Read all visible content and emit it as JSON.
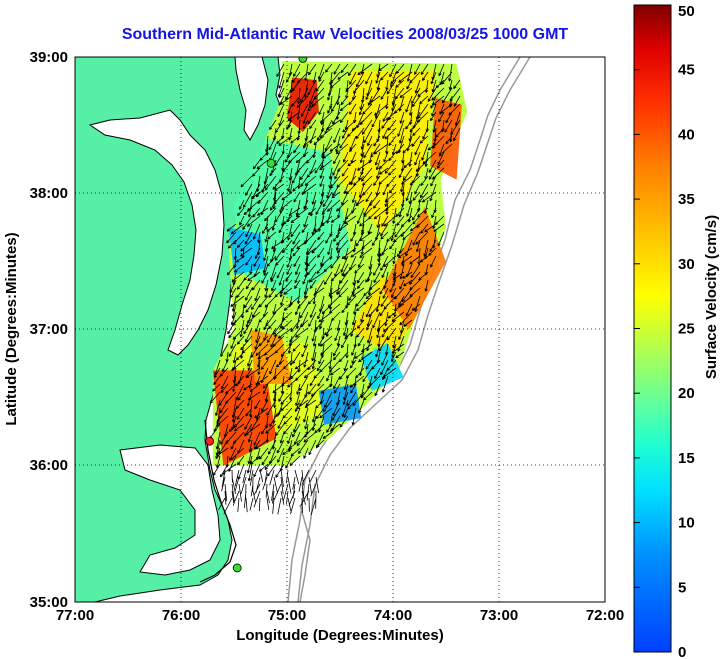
{
  "title": "Southern Mid-Atlantic Raw Velocities 2008/03/25 1000 GMT",
  "axes": {
    "xlabel": "Longitude (Degrees:Minutes)",
    "ylabel": "Latitude (Degrees:Minutes)",
    "xticks": [
      "77:00",
      "76:00",
      "75:00",
      "74:00",
      "73:00",
      "72:00"
    ],
    "yticks": [
      "39:00",
      "38:00",
      "37:00",
      "36:00",
      "35:00"
    ],
    "xlim": [
      -77,
      -72
    ],
    "ylim": [
      35,
      39
    ],
    "grid": "dotted"
  },
  "colorbar": {
    "label": "Surface Velocity (cm/s)",
    "ticks": [
      "50",
      "45",
      "40",
      "35",
      "30",
      "25",
      "20",
      "15",
      "10",
      "5",
      "0"
    ],
    "range": [
      0,
      50
    ],
    "colormap": "jet"
  },
  "colors": {
    "title": "#1414e6",
    "land": "#55f0a5",
    "ocean": "#ffffff",
    "coastline": "#000000",
    "bathymetry": "#999999",
    "station_red": "#ff2020",
    "station_green": "#33dd33"
  },
  "stations": [
    {
      "color": "green",
      "lon": -74.85,
      "lat": 38.99
    },
    {
      "color": "green",
      "lon": -75.15,
      "lat": 38.22
    },
    {
      "color": "red",
      "lon": -75.73,
      "lat": 36.18
    },
    {
      "color": "green",
      "lon": -75.47,
      "lat": 35.25
    }
  ],
  "velocity_regions": [
    {
      "level": 45,
      "polygon": [
        [
          -74.95,
          38.85
        ],
        [
          -74.72,
          38.83
        ],
        [
          -74.7,
          38.6
        ],
        [
          -74.85,
          38.45
        ],
        [
          -75.0,
          38.55
        ]
      ]
    },
    {
      "level": 40,
      "polygon": [
        [
          -73.6,
          38.7
        ],
        [
          -73.35,
          38.65
        ],
        [
          -73.4,
          38.1
        ],
        [
          -73.65,
          38.2
        ]
      ]
    },
    {
      "level": 38,
      "polygon": [
        [
          -73.7,
          37.9
        ],
        [
          -73.5,
          37.5
        ],
        [
          -73.85,
          37.0
        ],
        [
          -74.1,
          37.3
        ]
      ]
    },
    {
      "level": 10,
      "polygon": [
        [
          -75.55,
          37.75
        ],
        [
          -75.25,
          37.7
        ],
        [
          -75.2,
          37.45
        ],
        [
          -75.5,
          37.4
        ]
      ]
    },
    {
      "level": 12,
      "polygon": [
        [
          -74.3,
          36.8
        ],
        [
          -74.05,
          36.9
        ],
        [
          -73.9,
          36.65
        ],
        [
          -74.2,
          36.55
        ]
      ]
    },
    {
      "level": 8,
      "polygon": [
        [
          -74.7,
          36.55
        ],
        [
          -74.35,
          36.6
        ],
        [
          -74.3,
          36.35
        ],
        [
          -74.65,
          36.3
        ]
      ]
    },
    {
      "level": 42,
      "polygon": [
        [
          -75.7,
          36.7
        ],
        [
          -75.2,
          36.7
        ],
        [
          -75.1,
          36.2
        ],
        [
          -75.6,
          36.0
        ]
      ]
    },
    {
      "level": 36,
      "polygon": [
        [
          -75.35,
          37.0
        ],
        [
          -75.05,
          36.95
        ],
        [
          -74.95,
          36.6
        ],
        [
          -75.3,
          36.6
        ]
      ]
    }
  ]
}
